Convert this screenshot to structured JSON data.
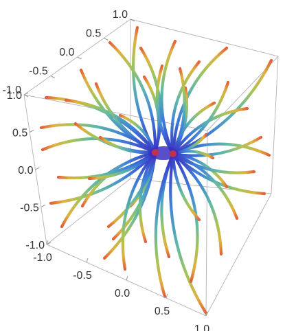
{
  "chart_data": {
    "type": "3d-stream-plot",
    "title": "",
    "xlabel": "",
    "ylabel": "",
    "zlabel": "",
    "x_range": [
      -1.0,
      1.0
    ],
    "y_range": [
      -1.0,
      1.0
    ],
    "z_range": [
      -1.0,
      1.0
    ],
    "x_ticks": [
      "-1.0",
      "-0.5",
      "0.0",
      "0.5",
      "1.0"
    ],
    "y_ticks": [
      "-1.0",
      "-0.5",
      "0.0",
      "0.5",
      "1.0"
    ],
    "z_ticks": [
      "-1.0",
      "-0.5",
      "0.0",
      "0.5",
      "1.0"
    ],
    "box": true,
    "field_description": "streamlines converging toward two points near the box center",
    "color_scheme": "rainbow by speed: blue near sinks, green/yellow mid, orange/red at outer ends",
    "colors": {
      "slow": "#3a2fbf",
      "mid_low": "#3f7fd9",
      "mid": "#5fb8a8",
      "mid_high": "#a8c455",
      "fast_high": "#e0b040",
      "fast": "#e0603a"
    }
  }
}
